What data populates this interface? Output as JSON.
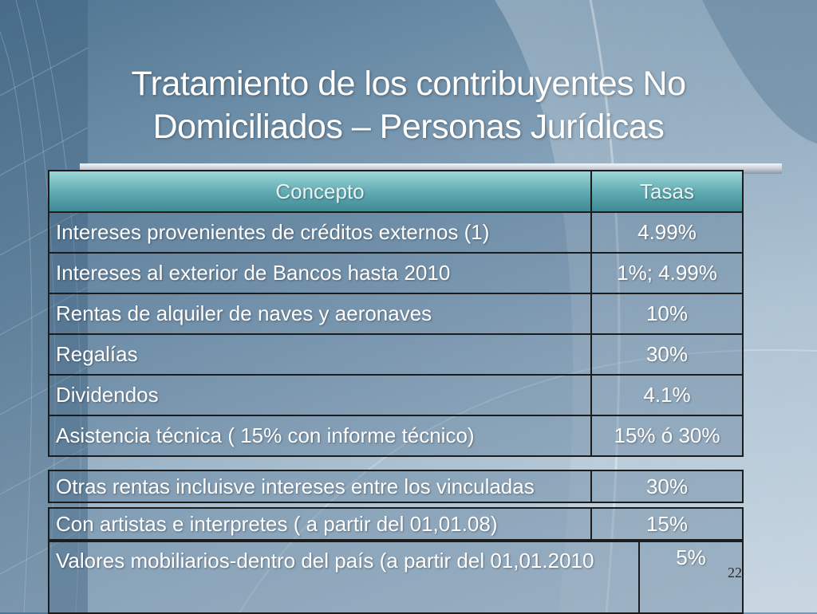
{
  "slide": {
    "title_line1": "Tratamiento de los contribuyentes No",
    "title_line2": "Domiciliados – Personas Jurídicas",
    "page_number": "22"
  },
  "table": {
    "headers": [
      "Concepto",
      "Tasas"
    ],
    "rows": [
      {
        "concept": "Intereses provenientes de créditos externos (1)",
        "rate": "4.99%"
      },
      {
        "concept": "Intereses al exterior de Bancos hasta 2010",
        "rate": "1%; 4.99%"
      },
      {
        "concept": "Rentas de alquiler de naves y aeronaves",
        "rate": "10%"
      },
      {
        "concept": "Regalías",
        "rate": "30%"
      },
      {
        "concept": "Dividendos",
        "rate": "4.1%"
      },
      {
        "concept": "Asistencia técnica ( 15% con informe técnico)",
        "rate": "15% ó 30%"
      }
    ]
  },
  "extra_rows": [
    {
      "concept": "Otras rentas incluisve intereses entre los vinculadas",
      "rate": "30%"
    },
    {
      "concept": "Con artistas e interpretes ( a partir del 01,01.08)",
      "rate": "15%"
    },
    {
      "concept": "Valores mobiliarios-dentro del país (a partir del 01,01.2010",
      "rate": "5%"
    }
  ],
  "colors": {
    "background": "#7d9bb3",
    "header_fill": "#5ea8b0",
    "text": "#ffffff",
    "border": "#1c1c1c"
  }
}
